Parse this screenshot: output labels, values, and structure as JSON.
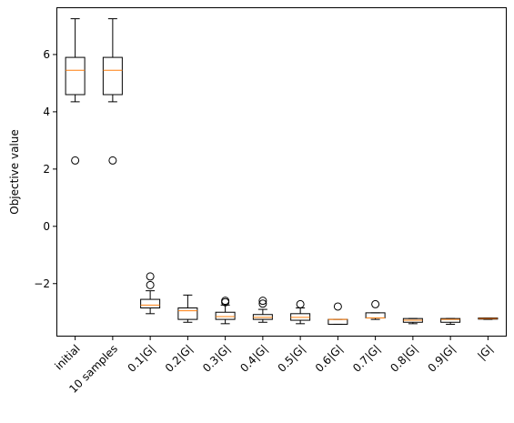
{
  "chart_data": {
    "type": "box",
    "ylabel": "Objective value",
    "xlabel": "",
    "title": "",
    "ylim": [
      -3.85,
      7.65
    ],
    "yticks": [
      -2,
      0,
      2,
      4,
      6
    ],
    "ytick_labels": [
      "−2",
      "0",
      "2",
      "4",
      "6"
    ],
    "grid": false,
    "colors": {
      "median": "#ff7f0e",
      "box": "#000000",
      "background": "#ffffff"
    },
    "categories": [
      "initial",
      "10 samples",
      "0.1|G|",
      "0.2|G|",
      "0.3|G|",
      "0.4|G|",
      "0.5|G|",
      "0.6|G|",
      "0.7|G|",
      "0.8|G|",
      "0.9|G|",
      "|G|"
    ],
    "boxes": [
      {
        "whislo": 4.35,
        "q1": 4.6,
        "med": 5.45,
        "q3": 5.9,
        "whishi": 7.25,
        "fliers": [
          2.3
        ]
      },
      {
        "whislo": 4.35,
        "q1": 4.6,
        "med": 5.45,
        "q3": 5.9,
        "whishi": 7.25,
        "fliers": [
          2.3
        ]
      },
      {
        "whislo": -3.05,
        "q1": -2.85,
        "med": -2.75,
        "q3": -2.55,
        "whishi": -2.25,
        "fliers": [
          -1.75,
          -2.05
        ]
      },
      {
        "whislo": -3.35,
        "q1": -3.25,
        "med": -2.95,
        "q3": -2.85,
        "whishi": -2.4,
        "fliers": []
      },
      {
        "whislo": -3.4,
        "q1": -3.25,
        "med": -3.15,
        "q3": -3.0,
        "whishi": -2.75,
        "fliers": [
          -2.6,
          -2.65
        ]
      },
      {
        "whislo": -3.35,
        "q1": -3.25,
        "med": -3.18,
        "q3": -3.08,
        "whishi": -2.9,
        "fliers": [
          -2.6,
          -2.7
        ]
      },
      {
        "whislo": -3.4,
        "q1": -3.28,
        "med": -3.18,
        "q3": -3.05,
        "whishi": -2.85,
        "fliers": [
          -2.72
        ]
      },
      {
        "whislo": -3.42,
        "q1": -3.42,
        "med": -3.25,
        "q3": -3.25,
        "whishi": -3.25,
        "fliers": [
          -2.8
        ]
      },
      {
        "whislo": -3.25,
        "q1": -3.2,
        "med": -3.2,
        "q3": -3.02,
        "whishi": -3.02,
        "fliers": [
          -2.72
        ]
      },
      {
        "whislo": -3.4,
        "q1": -3.35,
        "med": -3.28,
        "q3": -3.22,
        "whishi": -3.22,
        "fliers": []
      },
      {
        "whislo": -3.42,
        "q1": -3.35,
        "med": -3.25,
        "q3": -3.22,
        "whishi": -3.22,
        "fliers": []
      },
      {
        "whislo": -3.25,
        "q1": -3.24,
        "med": -3.22,
        "q3": -3.2,
        "whishi": -3.2,
        "fliers": []
      }
    ]
  }
}
